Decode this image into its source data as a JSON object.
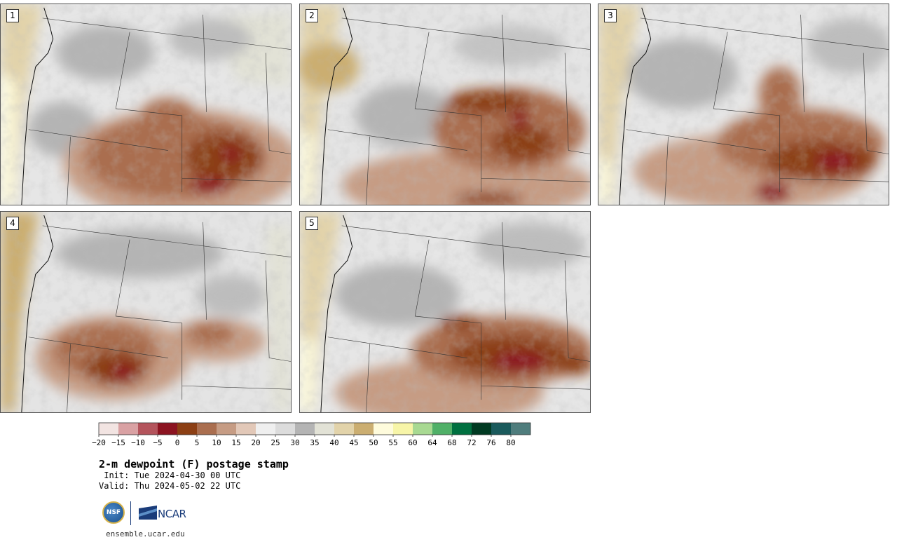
{
  "panels": [
    {
      "label": "1"
    },
    {
      "label": "2"
    },
    {
      "label": "3"
    },
    {
      "label": "4"
    },
    {
      "label": "5"
    }
  ],
  "colorbar": {
    "ticks": [
      "−20",
      "−15",
      "−10",
      "−5",
      "0",
      "5",
      "10",
      "15",
      "20",
      "25",
      "30",
      "35",
      "40",
      "45",
      "50",
      "55",
      "60",
      "64",
      "68",
      "72",
      "76",
      "80"
    ],
    "colors": [
      "#f2e4e2",
      "#d9a1a3",
      "#b4545c",
      "#8c1421",
      "#8c3f14",
      "#aa6e4f",
      "#c69c84",
      "#e2c8b8",
      "#efefef",
      "#dcdcdc",
      "#b4b4b4",
      "#e2e2d6",
      "#e2d3aa",
      "#cbae71",
      "#fefbdc",
      "#f7f5a8",
      "#a8d992",
      "#50b068",
      "#007040",
      "#003a22",
      "#1a5a5c",
      "#4f7d7d"
    ]
  },
  "title": "2-m dewpoint (F) postage stamp",
  "init": " Init: Tue 2024-04-30 00 UTC",
  "valid": "Valid: Thu 2024-05-02 22 UTC",
  "logos": {
    "nsf": "NSF",
    "ncar": "NCAR"
  },
  "url": "ensemble.ucar.edu"
}
